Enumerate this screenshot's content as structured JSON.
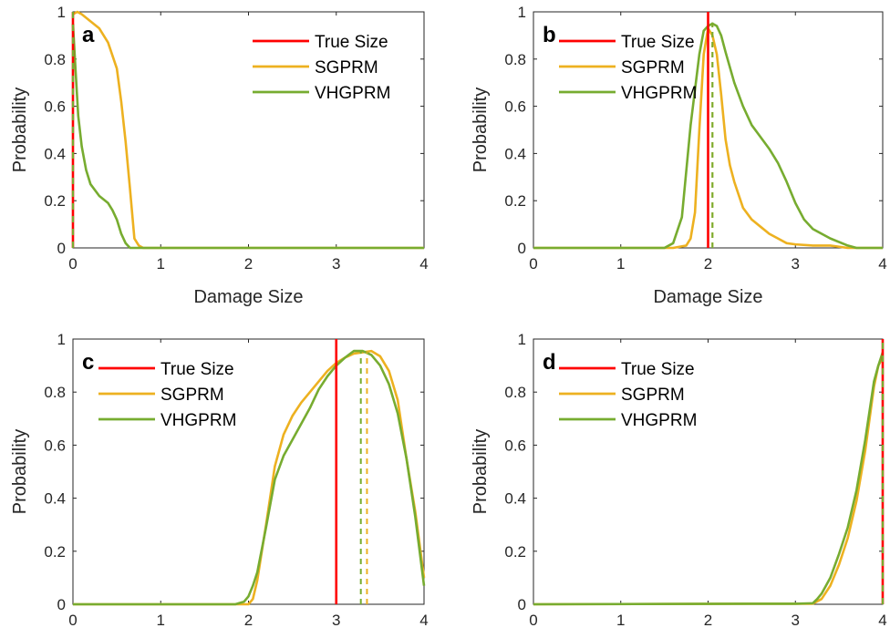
{
  "colors": {
    "true_size": "#ff0000",
    "sgprm": "#edb120",
    "vhgprm": "#77ac30",
    "axis": "#262626"
  },
  "chart_data": [
    {
      "type": "line",
      "panel_label": "a",
      "xlabel": "Damage Size",
      "ylabel": "Probability",
      "xlim": [
        0,
        4
      ],
      "ylim": [
        0,
        1
      ],
      "xticks": [
        0,
        1,
        2,
        3,
        4
      ],
      "yticks": [
        0,
        0.2,
        0.4,
        0.6,
        0.8,
        1
      ],
      "legend_position": "top-right",
      "true_size": 0,
      "estimates": {
        "SGPRM": 0,
        "VHGPRM": 0
      },
      "series": [
        {
          "name": "SGPRM",
          "x": [
            0,
            0.05,
            0.1,
            0.2,
            0.3,
            0.4,
            0.5,
            0.55,
            0.6,
            0.65,
            0.7,
            0.75,
            0.8,
            1,
            2,
            3,
            4
          ],
          "values": [
            0.99,
            1.0,
            0.99,
            0.96,
            0.93,
            0.87,
            0.76,
            0.62,
            0.45,
            0.25,
            0.04,
            0.01,
            0,
            0,
            0,
            0,
            0
          ]
        },
        {
          "name": "VHGPRM",
          "x": [
            0,
            0.03,
            0.06,
            0.1,
            0.15,
            0.2,
            0.3,
            0.4,
            0.45,
            0.5,
            0.55,
            0.6,
            0.65,
            0.7,
            1,
            2,
            3,
            4
          ],
          "values": [
            0.95,
            0.75,
            0.56,
            0.43,
            0.33,
            0.27,
            0.22,
            0.19,
            0.16,
            0.12,
            0.06,
            0.02,
            0,
            0,
            0,
            0,
            0,
            0
          ]
        }
      ]
    },
    {
      "type": "line",
      "panel_label": "b",
      "xlabel": "Damage Size",
      "ylabel": "Probability",
      "xlim": [
        0,
        4
      ],
      "ylim": [
        0,
        1
      ],
      "xticks": [
        0,
        1,
        2,
        3,
        4
      ],
      "yticks": [
        0,
        0.2,
        0.4,
        0.6,
        0.8,
        1
      ],
      "legend_position": "top-left",
      "true_size": 2.0,
      "estimates": {
        "SGPRM": 2.05,
        "VHGPRM": 2.05
      },
      "series": [
        {
          "name": "SGPRM",
          "x": [
            0,
            1.6,
            1.75,
            1.8,
            1.85,
            1.9,
            1.95,
            2.0,
            2.05,
            2.1,
            2.15,
            2.2,
            2.25,
            2.3,
            2.4,
            2.5,
            2.6,
            2.7,
            2.8,
            2.9,
            3.0,
            3.2,
            3.4,
            3.6,
            4
          ],
          "values": [
            0,
            0,
            0.01,
            0.04,
            0.15,
            0.5,
            0.82,
            0.93,
            0.9,
            0.82,
            0.65,
            0.46,
            0.35,
            0.28,
            0.17,
            0.12,
            0.09,
            0.06,
            0.04,
            0.02,
            0.015,
            0.01,
            0.01,
            0,
            0
          ]
        },
        {
          "name": "VHGPRM",
          "x": [
            0,
            1.5,
            1.6,
            1.7,
            1.8,
            1.9,
            1.95,
            2.0,
            2.05,
            2.1,
            2.15,
            2.2,
            2.3,
            2.4,
            2.5,
            2.6,
            2.7,
            2.8,
            2.9,
            3.0,
            3.1,
            3.2,
            3.4,
            3.6,
            3.7,
            4
          ],
          "values": [
            0,
            0,
            0.02,
            0.13,
            0.52,
            0.82,
            0.92,
            0.94,
            0.95,
            0.94,
            0.9,
            0.83,
            0.7,
            0.6,
            0.52,
            0.47,
            0.42,
            0.36,
            0.28,
            0.19,
            0.12,
            0.08,
            0.04,
            0.01,
            0,
            0
          ]
        }
      ]
    },
    {
      "type": "line",
      "panel_label": "c",
      "xlabel": "Damage Size",
      "ylabel": "Probability",
      "xlim": [
        0,
        4
      ],
      "ylim": [
        0,
        1
      ],
      "xticks": [
        0,
        1,
        2,
        3,
        4
      ],
      "yticks": [
        0,
        0.2,
        0.4,
        0.6,
        0.8,
        1
      ],
      "legend_position": "top-left",
      "true_size": 3.0,
      "estimates": {
        "SGPRM": 3.35,
        "VHGPRM": 3.28
      },
      "series": [
        {
          "name": "SGPRM",
          "x": [
            0,
            1.9,
            2.0,
            2.05,
            2.1,
            2.2,
            2.3,
            2.4,
            2.5,
            2.6,
            2.7,
            2.8,
            2.9,
            3.0,
            3.1,
            3.2,
            3.3,
            3.4,
            3.5,
            3.6,
            3.7,
            3.8,
            3.9,
            4.0
          ],
          "values": [
            0,
            0,
            0.0,
            0.02,
            0.09,
            0.3,
            0.52,
            0.64,
            0.71,
            0.76,
            0.8,
            0.84,
            0.88,
            0.91,
            0.93,
            0.945,
            0.95,
            0.955,
            0.935,
            0.88,
            0.77,
            0.55,
            0.35,
            0.1
          ]
        },
        {
          "name": "VHGPRM",
          "x": [
            0,
            1.85,
            1.95,
            2.0,
            2.05,
            2.1,
            2.2,
            2.3,
            2.4,
            2.5,
            2.6,
            2.7,
            2.8,
            2.9,
            3.0,
            3.1,
            3.2,
            3.3,
            3.4,
            3.5,
            3.6,
            3.7,
            3.8,
            3.9,
            4.0
          ],
          "values": [
            0,
            0,
            0.01,
            0.03,
            0.07,
            0.12,
            0.29,
            0.47,
            0.56,
            0.62,
            0.68,
            0.74,
            0.81,
            0.86,
            0.9,
            0.93,
            0.955,
            0.955,
            0.94,
            0.9,
            0.83,
            0.72,
            0.55,
            0.33,
            0.07
          ]
        }
      ]
    },
    {
      "type": "line",
      "panel_label": "d",
      "xlabel": "Damage Size",
      "ylabel": "Probability",
      "xlim": [
        0,
        4
      ],
      "ylim": [
        0,
        1
      ],
      "xticks": [
        0,
        1,
        2,
        3,
        4
      ],
      "yticks": [
        0,
        0.2,
        0.4,
        0.6,
        0.8,
        1
      ],
      "legend_position": "top-left",
      "true_size": 4.0,
      "estimates": {
        "SGPRM": 4.0,
        "VHGPRM": 4.0
      },
      "series": [
        {
          "name": "SGPRM",
          "x": [
            0,
            2.5,
            3.0,
            3.2,
            3.3,
            3.4,
            3.5,
            3.6,
            3.7,
            3.8,
            3.9,
            3.95,
            4.0
          ],
          "values": [
            0,
            0.002,
            0.002,
            0.002,
            0.02,
            0.07,
            0.15,
            0.25,
            0.39,
            0.58,
            0.82,
            0.9,
            0.93
          ]
        },
        {
          "name": "VHGPRM",
          "x": [
            0,
            2.5,
            3.0,
            3.2,
            3.25,
            3.3,
            3.4,
            3.5,
            3.6,
            3.7,
            3.8,
            3.9,
            3.95,
            4.0
          ],
          "values": [
            0,
            0.002,
            0.002,
            0.004,
            0.02,
            0.04,
            0.1,
            0.19,
            0.29,
            0.43,
            0.62,
            0.84,
            0.9,
            0.95
          ]
        }
      ]
    }
  ],
  "legend": {
    "true_size_label": "True Size",
    "sgprm_label": "SGPRM",
    "vhgprm_label": "VHGPRM"
  }
}
